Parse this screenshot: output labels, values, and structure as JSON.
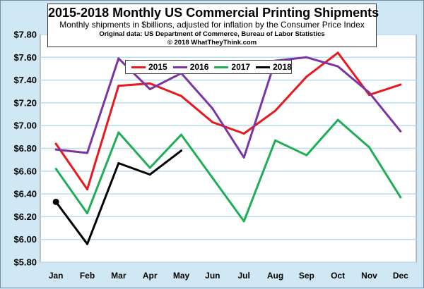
{
  "chart_data": {
    "type": "line",
    "title": "2015-2018 Monthly US Commercial Printing Shipments",
    "subtitle": "Monthly shipments in $billions, adjusted for inflation by the Consumer Price Index",
    "source": "Original data: US Department of Commerce, Bureau of Labor Statistics",
    "copyright": "© 2018 WhatTheyThink.com",
    "categories": [
      "Jan",
      "Feb",
      "Mar",
      "Apr",
      "May",
      "Jun",
      "Jul",
      "Aug",
      "Sep",
      "Oct",
      "Nov",
      "Dec"
    ],
    "ylim": [
      5.8,
      7.8
    ],
    "yticks": [
      "$5.80",
      "$6.00",
      "$6.20",
      "$6.40",
      "$6.60",
      "$6.80",
      "$7.00",
      "$7.20",
      "$7.40",
      "$7.60",
      "$7.80"
    ],
    "grid": true,
    "legend_position": "top-center",
    "series": [
      {
        "name": "2015",
        "color": "#e8191e",
        "values": [
          6.84,
          6.44,
          7.35,
          7.37,
          7.26,
          7.03,
          6.93,
          7.13,
          7.43,
          7.64,
          7.27,
          7.36
        ]
      },
      {
        "name": "2016",
        "color": "#7c34a4",
        "values": [
          6.79,
          6.76,
          7.59,
          7.32,
          7.46,
          7.15,
          6.72,
          7.57,
          7.6,
          7.52,
          7.29,
          6.95
        ]
      },
      {
        "name": "2017",
        "color": "#1fae55",
        "values": [
          6.62,
          6.23,
          6.94,
          6.63,
          6.92,
          null,
          6.16,
          6.87,
          6.74,
          7.05,
          6.81,
          6.37
        ]
      },
      {
        "name": "2018",
        "color": "#000000",
        "values": [
          6.33,
          5.96,
          6.67,
          6.57,
          6.78,
          null,
          null,
          null,
          null,
          null,
          null,
          null
        ]
      }
    ]
  }
}
